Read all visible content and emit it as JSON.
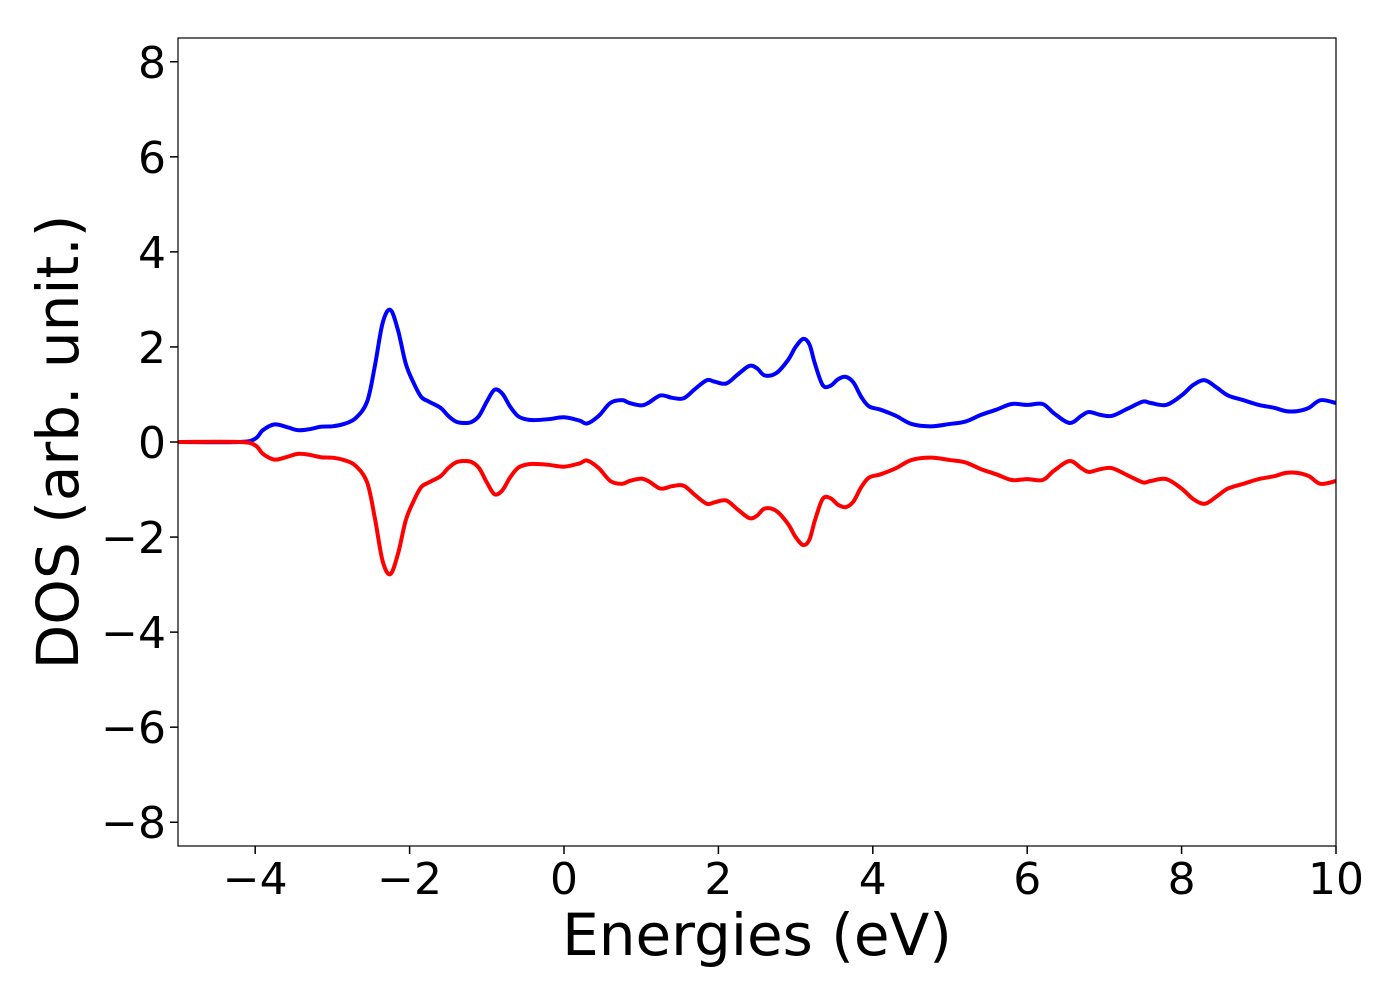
{
  "chart_data": {
    "type": "line",
    "title": "",
    "xlabel": "Energies (eV)",
    "ylabel": "DOS (arb. unit.)",
    "xlim": [
      -5,
      10
    ],
    "ylim": [
      -8.5,
      8.5
    ],
    "xticks": [
      -4,
      -2,
      0,
      2,
      4,
      6,
      8,
      10
    ],
    "yticks": [
      -8,
      -6,
      -4,
      -2,
      0,
      2,
      4,
      6,
      8
    ],
    "xtick_labels": [
      "−4",
      "−2",
      "0",
      "2",
      "4",
      "6",
      "8",
      "10"
    ],
    "ytick_labels": [
      "−8",
      "−6",
      "−4",
      "−2",
      "0",
      "2",
      "4",
      "6",
      "8"
    ],
    "grid": false,
    "legend": "none",
    "series": [
      {
        "color": "#0000ff",
        "x": [
          -5.0,
          -4.2,
          -4.0,
          -3.9,
          -3.75,
          -3.6,
          -3.45,
          -3.3,
          -3.15,
          -3.0,
          -2.85,
          -2.7,
          -2.55,
          -2.45,
          -2.35,
          -2.25,
          -2.15,
          -2.05,
          -1.95,
          -1.85,
          -1.75,
          -1.6,
          -1.5,
          -1.4,
          -1.3,
          -1.2,
          -1.1,
          -1.0,
          -0.9,
          -0.8,
          -0.7,
          -0.6,
          -0.5,
          -0.4,
          -0.2,
          0.0,
          0.2,
          0.3,
          0.45,
          0.6,
          0.75,
          0.85,
          1.0,
          1.1,
          1.25,
          1.4,
          1.55,
          1.7,
          1.85,
          1.95,
          2.1,
          2.25,
          2.4,
          2.5,
          2.6,
          2.75,
          2.9,
          3.0,
          3.1,
          3.18,
          3.25,
          3.35,
          3.45,
          3.55,
          3.65,
          3.75,
          3.85,
          3.95,
          4.1,
          4.3,
          4.5,
          4.75,
          5.0,
          5.2,
          5.4,
          5.6,
          5.8,
          6.0,
          6.2,
          6.35,
          6.55,
          6.7,
          6.8,
          6.95,
          7.1,
          7.3,
          7.5,
          7.6,
          7.8,
          8.0,
          8.15,
          8.3,
          8.45,
          8.6,
          8.8,
          9.0,
          9.2,
          9.35,
          9.5,
          9.65,
          9.8,
          10.0
        ],
        "y": [
          0.0,
          0.0,
          0.07,
          0.25,
          0.37,
          0.32,
          0.25,
          0.27,
          0.32,
          0.33,
          0.38,
          0.5,
          0.85,
          1.6,
          2.5,
          2.78,
          2.35,
          1.65,
          1.25,
          0.95,
          0.85,
          0.72,
          0.55,
          0.43,
          0.4,
          0.42,
          0.55,
          0.85,
          1.1,
          1.02,
          0.75,
          0.55,
          0.48,
          0.46,
          0.48,
          0.52,
          0.45,
          0.39,
          0.55,
          0.82,
          0.88,
          0.82,
          0.77,
          0.83,
          0.98,
          0.93,
          0.92,
          1.12,
          1.3,
          1.27,
          1.23,
          1.42,
          1.6,
          1.55,
          1.4,
          1.45,
          1.72,
          2.0,
          2.17,
          2.05,
          1.65,
          1.2,
          1.18,
          1.32,
          1.37,
          1.25,
          0.95,
          0.75,
          0.68,
          0.55,
          0.38,
          0.33,
          0.38,
          0.43,
          0.57,
          0.68,
          0.8,
          0.78,
          0.8,
          0.6,
          0.4,
          0.55,
          0.63,
          0.57,
          0.55,
          0.7,
          0.85,
          0.82,
          0.78,
          0.98,
          1.2,
          1.3,
          1.15,
          0.98,
          0.88,
          0.78,
          0.72,
          0.65,
          0.65,
          0.72,
          0.88,
          0.82
        ]
      },
      {
        "color": "#ff0000",
        "x": [
          -5.0,
          -4.2,
          -4.0,
          -3.9,
          -3.75,
          -3.6,
          -3.45,
          -3.3,
          -3.15,
          -3.0,
          -2.85,
          -2.7,
          -2.55,
          -2.45,
          -2.35,
          -2.25,
          -2.15,
          -2.05,
          -1.95,
          -1.85,
          -1.75,
          -1.6,
          -1.5,
          -1.4,
          -1.3,
          -1.2,
          -1.1,
          -1.0,
          -0.9,
          -0.8,
          -0.7,
          -0.6,
          -0.5,
          -0.4,
          -0.2,
          0.0,
          0.2,
          0.3,
          0.45,
          0.6,
          0.75,
          0.85,
          1.0,
          1.1,
          1.25,
          1.4,
          1.55,
          1.7,
          1.85,
          1.95,
          2.1,
          2.25,
          2.4,
          2.5,
          2.6,
          2.75,
          2.9,
          3.0,
          3.1,
          3.18,
          3.25,
          3.35,
          3.45,
          3.55,
          3.65,
          3.75,
          3.85,
          3.95,
          4.1,
          4.3,
          4.5,
          4.75,
          5.0,
          5.2,
          5.4,
          5.6,
          5.8,
          6.0,
          6.2,
          6.35,
          6.55,
          6.7,
          6.8,
          6.95,
          7.1,
          7.3,
          7.5,
          7.6,
          7.8,
          8.0,
          8.15,
          8.3,
          8.45,
          8.6,
          8.8,
          9.0,
          9.2,
          9.35,
          9.5,
          9.65,
          9.8,
          10.0
        ],
        "y": [
          0.0,
          0.0,
          -0.07,
          -0.25,
          -0.37,
          -0.32,
          -0.25,
          -0.27,
          -0.32,
          -0.33,
          -0.38,
          -0.5,
          -0.85,
          -1.6,
          -2.5,
          -2.78,
          -2.35,
          -1.65,
          -1.25,
          -0.95,
          -0.85,
          -0.72,
          -0.55,
          -0.43,
          -0.4,
          -0.42,
          -0.55,
          -0.85,
          -1.1,
          -1.02,
          -0.75,
          -0.55,
          -0.48,
          -0.46,
          -0.48,
          -0.52,
          -0.45,
          -0.39,
          -0.55,
          -0.82,
          -0.88,
          -0.82,
          -0.77,
          -0.83,
          -0.98,
          -0.93,
          -0.92,
          -1.12,
          -1.3,
          -1.27,
          -1.23,
          -1.42,
          -1.6,
          -1.55,
          -1.4,
          -1.45,
          -1.72,
          -2.0,
          -2.17,
          -2.05,
          -1.65,
          -1.2,
          -1.18,
          -1.32,
          -1.37,
          -1.25,
          -0.95,
          -0.75,
          -0.68,
          -0.55,
          -0.38,
          -0.33,
          -0.38,
          -0.43,
          -0.57,
          -0.68,
          -0.8,
          -0.78,
          -0.8,
          -0.6,
          -0.4,
          -0.55,
          -0.63,
          -0.57,
          -0.55,
          -0.7,
          -0.85,
          -0.82,
          -0.78,
          -0.98,
          -1.2,
          -1.3,
          -1.15,
          -0.98,
          -0.88,
          -0.78,
          -0.72,
          -0.65,
          -0.65,
          -0.72,
          -0.88,
          -0.82
        ]
      }
    ]
  }
}
